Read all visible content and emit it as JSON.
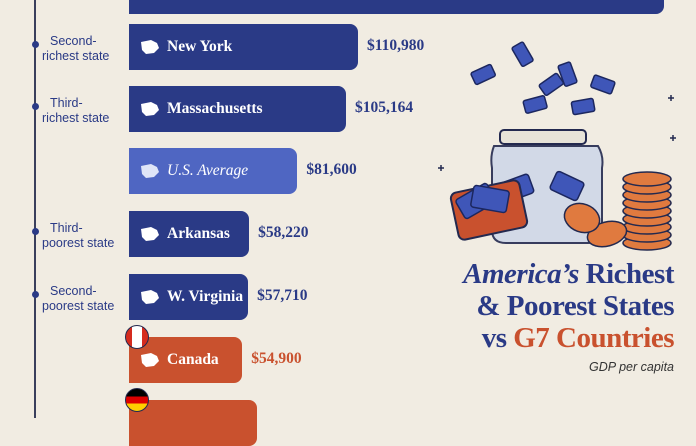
{
  "chart_data": {
    "type": "bar",
    "orientation": "horizontal",
    "subtitle": "GDP per capita",
    "title_parts": [
      "America’s",
      "Richest",
      "& Poorest States",
      "vs",
      "G7 Countries"
    ],
    "bars": [
      {
        "name": "",
        "value": null,
        "side_label": "",
        "kind": "state"
      },
      {
        "name": "New York",
        "value": 110980,
        "value_label": "$110,980",
        "side_label": [
          "Second-",
          "richest state"
        ],
        "kind": "state"
      },
      {
        "name": "Massachusetts",
        "value": 105164,
        "value_label": "$105,164",
        "side_label": [
          "Third-",
          "richest state"
        ],
        "kind": "state"
      },
      {
        "name": "U.S. Average",
        "value": 81600,
        "value_label": "$81,600",
        "side_label": [],
        "kind": "average"
      },
      {
        "name": "Arkansas",
        "value": 58220,
        "value_label": "$58,220",
        "side_label": [
          "Third-",
          "poorest state"
        ],
        "kind": "state"
      },
      {
        "name": "W. Virginia",
        "value": 57710,
        "value_label": "$57,710",
        "side_label": [
          "Second-",
          "poorest state"
        ],
        "kind": "state"
      },
      {
        "name": "Canada",
        "value": 54900,
        "value_label": "$54,900",
        "side_label": [],
        "kind": "country"
      },
      {
        "name": "",
        "value": null,
        "side_label": [],
        "kind": "country"
      }
    ],
    "colors": {
      "state": "#2a3a86",
      "average": "#4f66c2",
      "country": "#c9512e",
      "value_state": "#2a3a86",
      "value_country": "#c9512e"
    }
  }
}
